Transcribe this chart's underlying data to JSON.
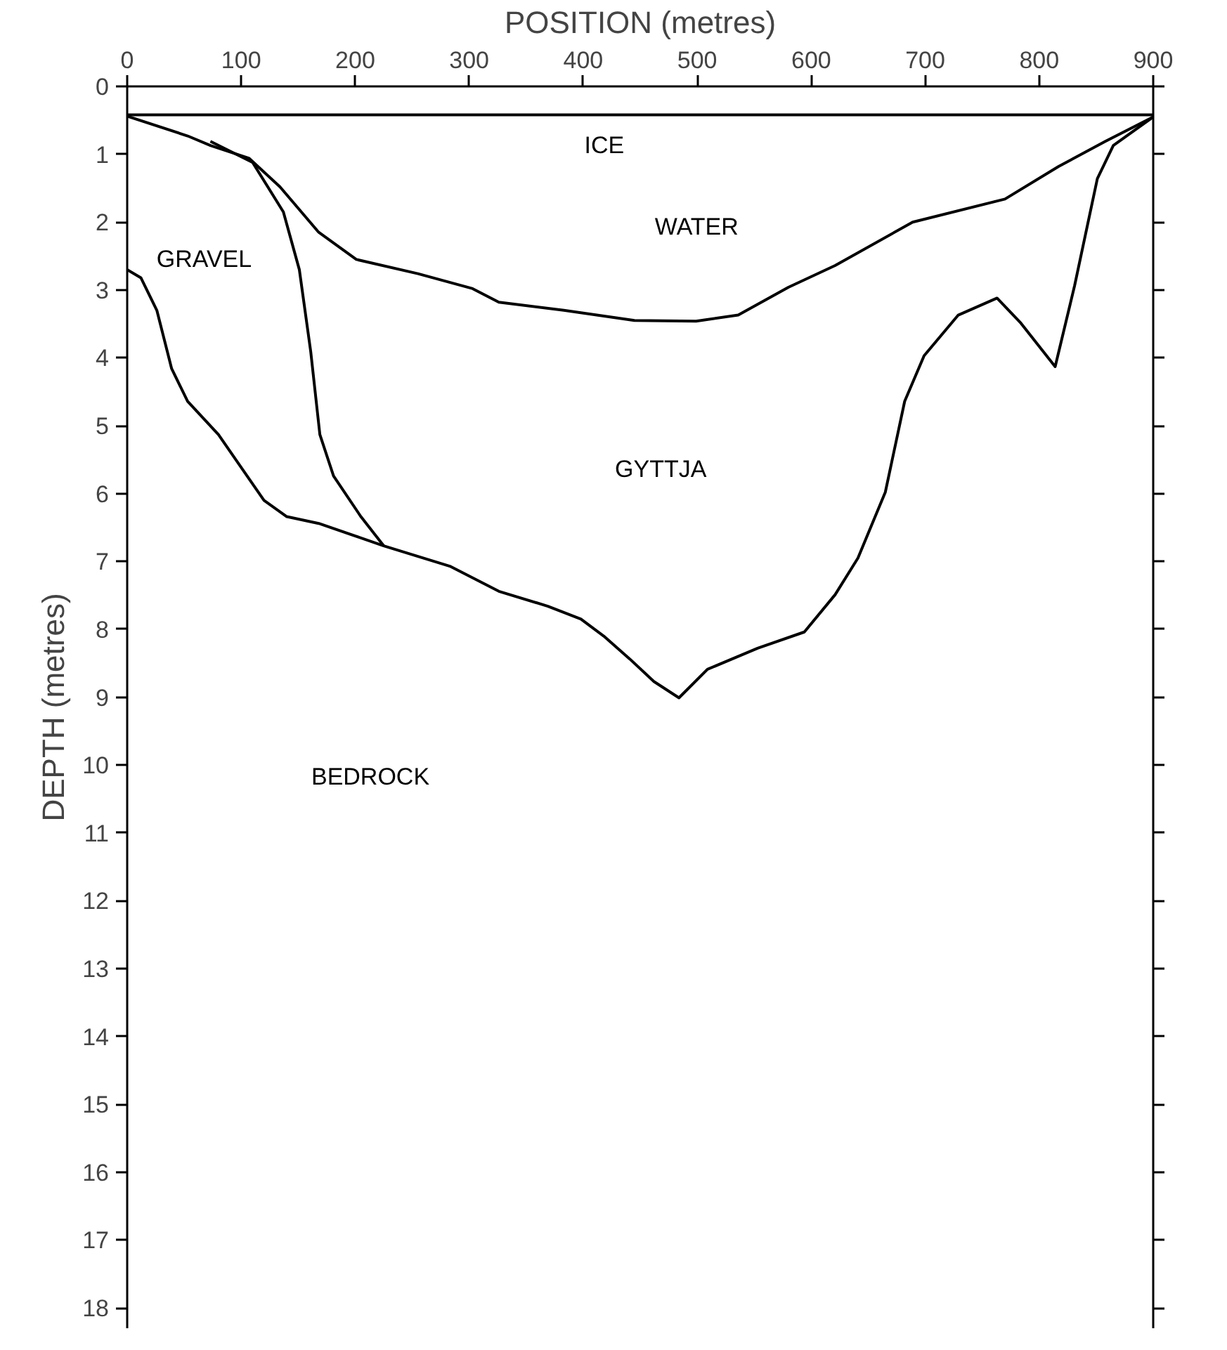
{
  "chart_data": {
    "type": "line",
    "xlabel": "POSITION (metres)",
    "ylabel": "DEPTH (metres)",
    "xlim": [
      0,
      900
    ],
    "xticks": [
      0,
      100,
      200,
      300,
      400,
      500,
      600,
      700,
      800,
      900
    ],
    "ylim": [
      18.3,
      0
    ],
    "yticks": [
      0,
      1,
      2,
      3,
      4,
      5,
      6,
      7,
      8,
      9,
      10,
      11,
      12,
      13,
      14,
      15,
      16,
      17,
      18
    ],
    "ref_lines": [
      {
        "axis": "y",
        "value": 0.42,
        "label": "ICE",
        "color": "#000000",
        "line_style": "solid"
      }
    ],
    "grid": false,
    "marker": "none",
    "line_style": "solid",
    "series": [
      {
        "color": "#000000",
        "x": [
          0,
          53,
          73,
          107,
          134,
          168,
          201,
          255,
          303,
          326,
          383,
          445,
          499,
          536,
          580,
          621,
          689,
          770,
          817,
          858,
          900
        ],
        "values": [
          0.44,
          0.73,
          0.87,
          1.06,
          1.48,
          2.15,
          2.55,
          2.76,
          2.98,
          3.18,
          3.3,
          3.45,
          3.46,
          3.37,
          2.96,
          2.64,
          2.0,
          1.66,
          1.18,
          0.81,
          0.45
        ]
      },
      {
        "color": "#000000",
        "x": [
          73,
          110,
          137,
          151,
          161,
          169,
          181,
          205,
          225
        ],
        "values": [
          0.81,
          1.12,
          1.85,
          2.7,
          3.91,
          5.13,
          5.74,
          6.34,
          6.77
        ]
      },
      {
        "color": "#000000",
        "x": [
          0,
          12,
          26,
          39,
          53,
          80,
          120,
          140,
          168,
          225,
          283,
          326,
          369,
          398,
          418,
          441,
          462,
          484,
          509,
          553,
          594,
          621,
          641,
          665,
          682,
          699,
          729,
          763,
          784,
          814,
          831,
          851,
          865,
          900
        ],
        "values": [
          2.7,
          2.82,
          3.3,
          4.16,
          4.64,
          5.13,
          6.1,
          6.34,
          6.44,
          6.77,
          7.07,
          7.44,
          7.66,
          7.85,
          8.1,
          8.44,
          8.77,
          9.01,
          8.59,
          8.28,
          8.04,
          7.49,
          6.95,
          5.98,
          4.64,
          3.97,
          3.37,
          3.12,
          3.49,
          4.13,
          2.94,
          1.36,
          0.87,
          0.45
        ]
      }
    ],
    "annotations": [
      "WATER",
      "GRAVEL",
      "GYTTJA",
      "BEDROCK"
    ]
  }
}
